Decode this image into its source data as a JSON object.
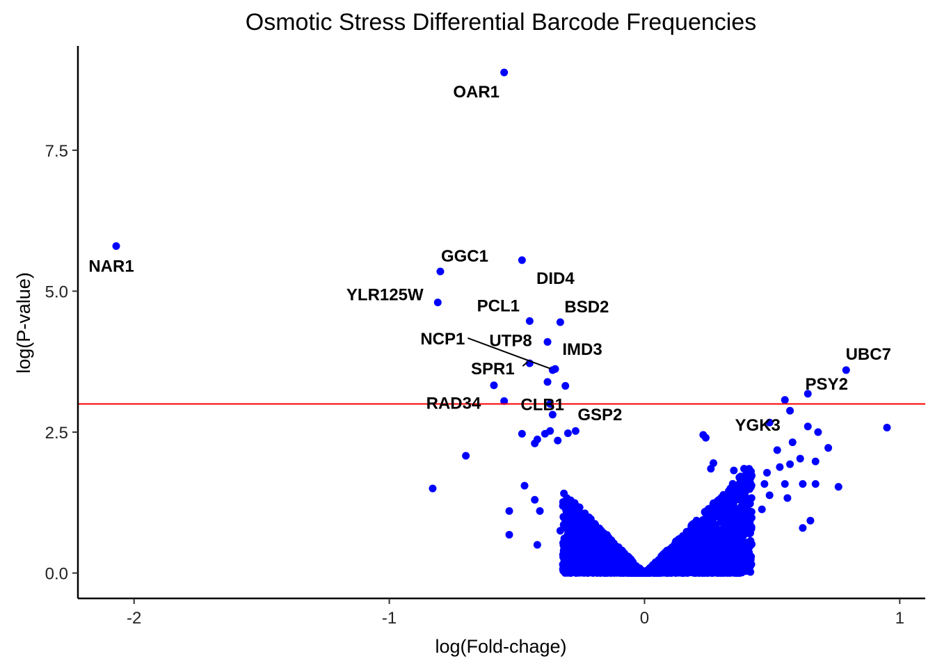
{
  "chart_data": {
    "type": "scatter",
    "title": "Osmotic Stress Differential Barcode Frequencies",
    "xlabel": "log(Fold-chage)",
    "ylabel": "log(P-value)",
    "xlim": [
      -2.22,
      1.1
    ],
    "ylim": [
      -0.45,
      9.35
    ],
    "x_ticks": [
      -2,
      -1,
      0,
      1
    ],
    "x_tick_labels": [
      "-2",
      "-1",
      "0",
      "1"
    ],
    "y_ticks": [
      0,
      2.5,
      5,
      7.5
    ],
    "y_tick_labels": [
      "0.0",
      "2.5",
      "5.0",
      "7.5"
    ],
    "grid": false,
    "point_color": "#0000ff",
    "threshold": {
      "y": 3.0,
      "color": "#ff0000"
    },
    "labeled_points": [
      {
        "label": "OAR1",
        "x": -0.55,
        "y": 8.88
      },
      {
        "label": "NAR1",
        "x": -2.07,
        "y": 5.8
      },
      {
        "label": "GGC1",
        "x": -0.8,
        "y": 5.35
      },
      {
        "label": "DID4",
        "x": -0.48,
        "y": 5.55
      },
      {
        "label": "YLR125W",
        "x": -0.81,
        "y": 4.8
      },
      {
        "label": "PCL1",
        "x": -0.45,
        "y": 4.47
      },
      {
        "label": "BSD2",
        "x": -0.33,
        "y": 4.45
      },
      {
        "label": "NCP1",
        "x": -0.36,
        "y": 3.6
      },
      {
        "label": "UTP8",
        "x": -0.38,
        "y": 4.1
      },
      {
        "label": "IMD3",
        "x": -0.35,
        "y": 3.62
      },
      {
        "label": "SPR1",
        "x": -0.45,
        "y": 3.72
      },
      {
        "label": "RAD34",
        "x": -0.59,
        "y": 3.33
      },
      {
        "label": "CLB1",
        "x": -0.37,
        "y": 3.0
      },
      {
        "label": "GSP2",
        "x": -0.36,
        "y": 2.81
      },
      {
        "label": "UBC7",
        "x": 0.79,
        "y": 3.6
      },
      {
        "label": "PSY2",
        "x": 0.64,
        "y": 3.18
      },
      {
        "label": "YGK3",
        "x": 0.49,
        "y": 2.67
      }
    ],
    "other_points": [
      {
        "x": -0.38,
        "y": 3.39
      },
      {
        "x": -0.31,
        "y": 3.32
      },
      {
        "x": -0.55,
        "y": 3.05
      },
      {
        "x": 0.55,
        "y": 3.07
      },
      {
        "x": 0.57,
        "y": 2.88
      },
      {
        "x": 0.64,
        "y": 2.6
      },
      {
        "x": 0.68,
        "y": 2.5
      },
      {
        "x": 0.95,
        "y": 2.58
      },
      {
        "x": 0.58,
        "y": 2.32
      },
      {
        "x": 0.72,
        "y": 2.22
      },
      {
        "x": 0.52,
        "y": 2.18
      },
      {
        "x": 0.61,
        "y": 2.03
      },
      {
        "x": 0.67,
        "y": 1.98
      },
      {
        "x": 0.57,
        "y": 1.93
      },
      {
        "x": 0.53,
        "y": 1.88
      },
      {
        "x": 0.48,
        "y": 1.78
      },
      {
        "x": 0.42,
        "y": 1.73
      },
      {
        "x": 0.47,
        "y": 1.58
      },
      {
        "x": 0.55,
        "y": 1.58
      },
      {
        "x": 0.62,
        "y": 1.58
      },
      {
        "x": 0.67,
        "y": 1.58
      },
      {
        "x": 0.76,
        "y": 1.53
      },
      {
        "x": 0.49,
        "y": 1.38
      },
      {
        "x": 0.56,
        "y": 1.33
      },
      {
        "x": 0.46,
        "y": 1.13
      },
      {
        "x": 0.42,
        "y": 0.98
      },
      {
        "x": 0.38,
        "y": 0.88
      },
      {
        "x": 0.65,
        "y": 0.93
      },
      {
        "x": 0.62,
        "y": 0.8
      },
      {
        "x": -0.7,
        "y": 2.08
      },
      {
        "x": -0.83,
        "y": 1.5
      },
      {
        "x": -0.48,
        "y": 2.47
      },
      {
        "x": -0.42,
        "y": 2.37
      },
      {
        "x": -0.43,
        "y": 2.3
      },
      {
        "x": -0.39,
        "y": 2.47
      },
      {
        "x": -0.37,
        "y": 2.52
      },
      {
        "x": -0.34,
        "y": 2.35
      },
      {
        "x": -0.3,
        "y": 2.48
      },
      {
        "x": -0.27,
        "y": 2.52
      },
      {
        "x": -0.47,
        "y": 1.55
      },
      {
        "x": -0.43,
        "y": 1.3
      },
      {
        "x": -0.41,
        "y": 1.1
      },
      {
        "x": -0.53,
        "y": 1.1
      },
      {
        "x": -0.53,
        "y": 0.68
      },
      {
        "x": -0.42,
        "y": 0.5
      },
      {
        "x": -0.33,
        "y": 0.75
      },
      {
        "x": -0.29,
        "y": 0.55
      },
      {
        "x": 0.35,
        "y": 1.5
      },
      {
        "x": 0.27,
        "y": 1.95
      },
      {
        "x": 0.24,
        "y": 2.4
      },
      {
        "x": 0.23,
        "y": 2.45
      },
      {
        "x": 0.35,
        "y": 1.82
      },
      {
        "x": 0.39,
        "y": 1.85
      },
      {
        "x": 0.26,
        "y": 1.85
      }
    ],
    "cloud_max_y_per_unit_x": 4.6,
    "cloud_x_range": [
      -0.32,
      0.42
    ]
  }
}
